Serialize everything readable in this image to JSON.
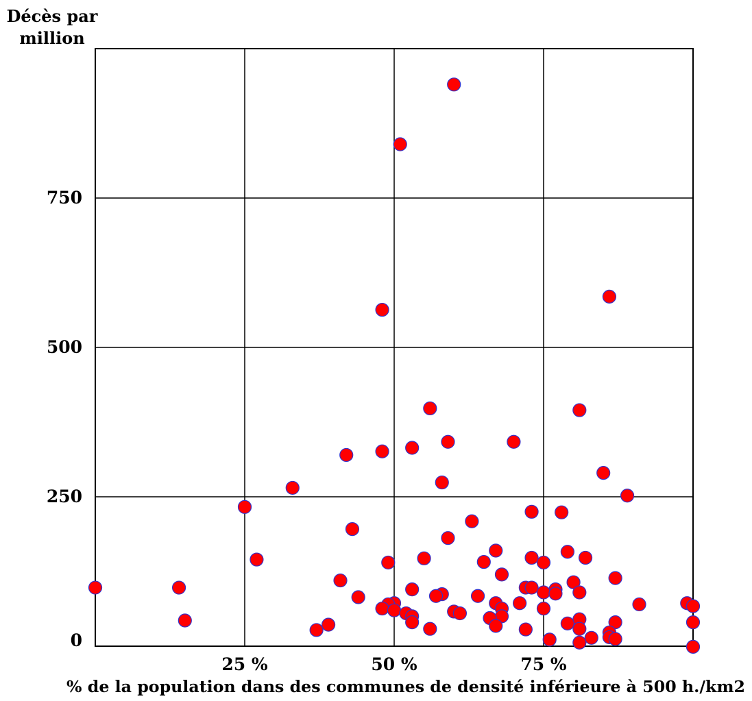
{
  "chart_data": {
    "type": "scatter",
    "title": "",
    "ylabel_lines": [
      "Décès par",
      "million"
    ],
    "xlabel": "% de la population dans des communes de densité inférieure à 500 h./km2",
    "xlim": [
      0,
      100
    ],
    "ylim": [
      0,
      1000
    ],
    "xticks": [
      {
        "value": 25,
        "label": "25 %"
      },
      {
        "value": 50,
        "label": "50 %"
      },
      {
        "value": 75,
        "label": "75 %"
      }
    ],
    "yticks": [
      {
        "value": 0,
        "label": "0"
      },
      {
        "value": 250,
        "label": "250"
      },
      {
        "value": 500,
        "label": "500"
      },
      {
        "value": 750,
        "label": "750"
      }
    ],
    "grid": true,
    "marker_color": "#ff0000",
    "marker_edge_color": "#3333cc",
    "points": [
      [
        60,
        940
      ],
      [
        51,
        840
      ],
      [
        86,
        585
      ],
      [
        48,
        563
      ],
      [
        56,
        398
      ],
      [
        81,
        395
      ],
      [
        59,
        342
      ],
      [
        70,
        342
      ],
      [
        53,
        332
      ],
      [
        48,
        326
      ],
      [
        42,
        320
      ],
      [
        85,
        290
      ],
      [
        58,
        274
      ],
      [
        33,
        265
      ],
      [
        89,
        252
      ],
      [
        25,
        233
      ],
      [
        73,
        225
      ],
      [
        78,
        224
      ],
      [
        63,
        209
      ],
      [
        43,
        196
      ],
      [
        59,
        181
      ],
      [
        67,
        160
      ],
      [
        79,
        158
      ],
      [
        55,
        147
      ],
      [
        73,
        148
      ],
      [
        82,
        148
      ],
      [
        27,
        145
      ],
      [
        49,
        140
      ],
      [
        65,
        141
      ],
      [
        75,
        140
      ],
      [
        68,
        120
      ],
      [
        87,
        114
      ],
      [
        41,
        110
      ],
      [
        80,
        107
      ],
      [
        0,
        98
      ],
      [
        14,
        98
      ],
      [
        72,
        98
      ],
      [
        73,
        98
      ],
      [
        53,
        95
      ],
      [
        77,
        95
      ],
      [
        75,
        90
      ],
      [
        77,
        88
      ],
      [
        81,
        90
      ],
      [
        58,
        87
      ],
      [
        57,
        84
      ],
      [
        64,
        84
      ],
      [
        44,
        82
      ],
      [
        67,
        72
      ],
      [
        71,
        72
      ],
      [
        50,
        72
      ],
      [
        49,
        70
      ],
      [
        91,
        70
      ],
      [
        99,
        72
      ],
      [
        100,
        67
      ],
      [
        48,
        63
      ],
      [
        75,
        63
      ],
      [
        68,
        63
      ],
      [
        50,
        60
      ],
      [
        60,
        58
      ],
      [
        61,
        55
      ],
      [
        52,
        55
      ],
      [
        53,
        50
      ],
      [
        68,
        50
      ],
      [
        66,
        47
      ],
      [
        81,
        45
      ],
      [
        15,
        43
      ],
      [
        53,
        40
      ],
      [
        87,
        40
      ],
      [
        79,
        38
      ],
      [
        100,
        40
      ],
      [
        39,
        36
      ],
      [
        67,
        34
      ],
      [
        37,
        27
      ],
      [
        56,
        29
      ],
      [
        72,
        28
      ],
      [
        81,
        29
      ],
      [
        86,
        23
      ],
      [
        86,
        15
      ],
      [
        83,
        14
      ],
      [
        87,
        12
      ],
      [
        76,
        11
      ],
      [
        81,
        6
      ],
      [
        100,
        -1
      ]
    ]
  }
}
